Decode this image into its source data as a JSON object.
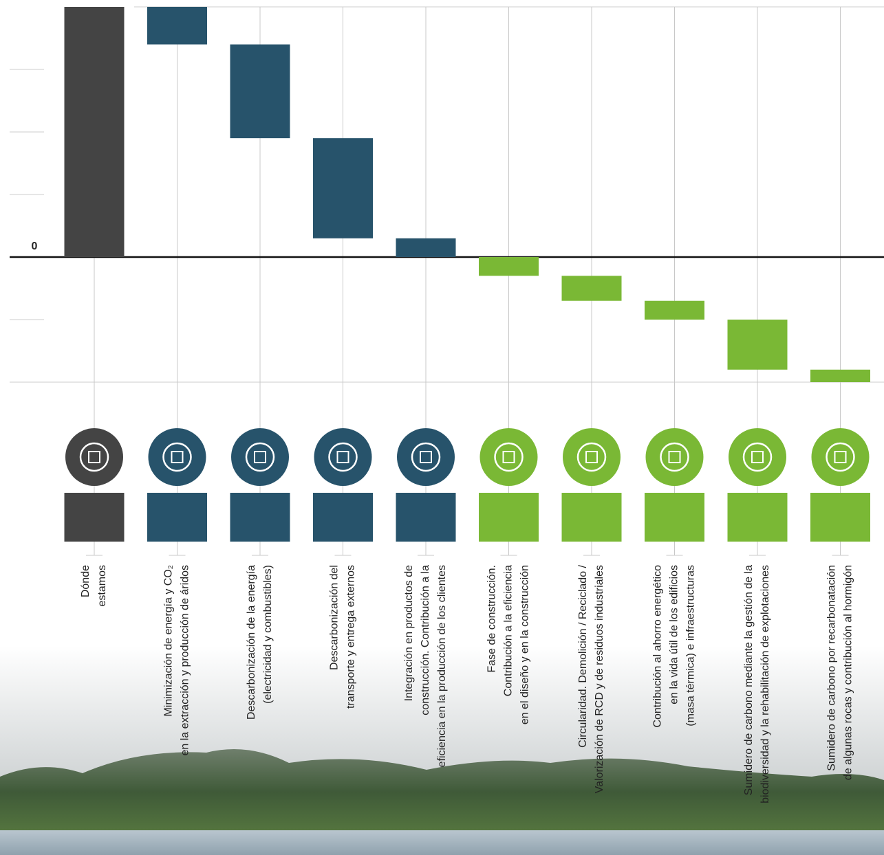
{
  "chart_data": {
    "type": "waterfall",
    "categories": [
      [
        "Dónde",
        "estamos"
      ],
      [
        "Minimización de energía y CO₂",
        "en la extracción y producción de áridos"
      ],
      [
        "Descarbonización de la energía",
        "(electricidad y combustibles)"
      ],
      [
        "Descarbonización del",
        "transporte y entrega externos"
      ],
      [
        "Integración en productos de",
        "construcción. Contribución a la",
        "eficiencia en la producción de los clientes"
      ],
      [
        "Fase de construcción.",
        "Contribución a la eficiencia",
        "en el diseño y en la construcción"
      ],
      [
        "Circularidad. Demolición / Reciclado /",
        "Valorización de RCD y de residuos industriales"
      ],
      [
        "Contribución al ahorro energético",
        "en la vida útil de los edificios",
        "(masa térmica) e infraestructuras"
      ],
      [
        "Sumidero de carbono mediante la gestión de la",
        "biodiversidad y la rehabilitación de explotaciones"
      ],
      [
        "Sumidero de carbono por recarbonatación",
        "de algunas rocas y contribución al hormigón"
      ]
    ],
    "values": [
      4,
      -0.6,
      -1.5,
      -1.6,
      -0.3,
      -0.3,
      -0.4,
      -0.3,
      -0.8,
      -0.2
    ],
    "colors": [
      "#444444",
      "#27536b",
      "#27536b",
      "#27536b",
      "#27536b",
      "#7ab835",
      "#7ab835",
      "#7ab835",
      "#7ab835",
      "#7ab835"
    ],
    "ylim": [
      -2,
      4
    ],
    "yticks": [
      0
    ],
    "gridlines": [
      -1,
      1,
      2,
      3
    ]
  }
}
